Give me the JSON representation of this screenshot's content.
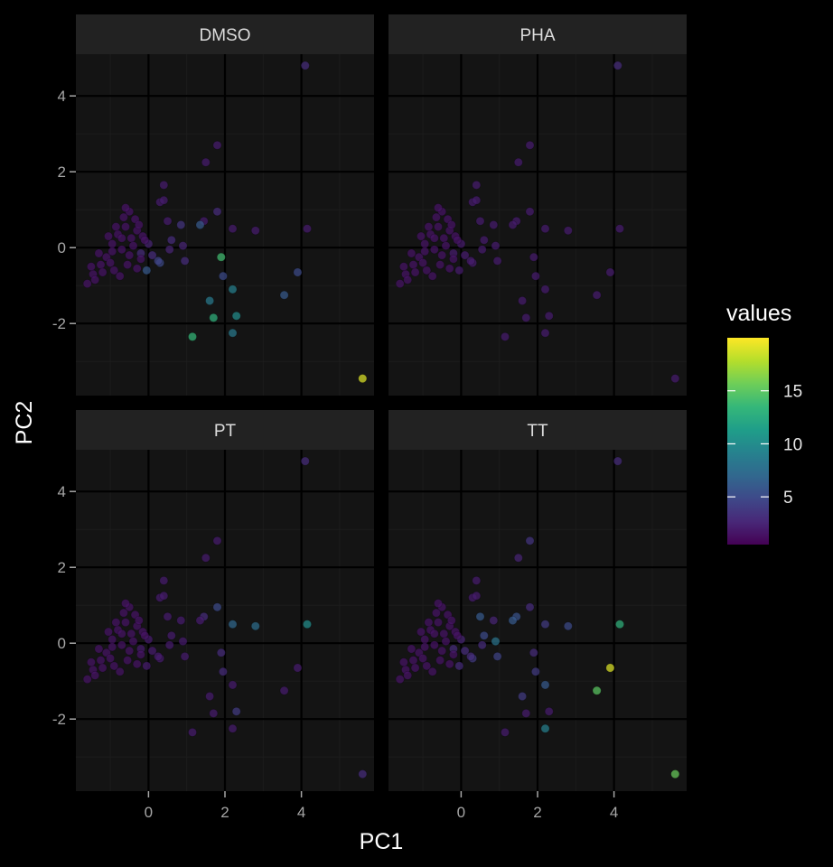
{
  "chart_data": {
    "type": "scatter",
    "facets": [
      "DMSO",
      "PHA",
      "PT",
      "TT"
    ],
    "xlabel": "PC1",
    "ylabel": "PC2",
    "xlim": [
      -1.9,
      5.9
    ],
    "ylim": [
      -3.9,
      5.1
    ],
    "x_ticks": [
      0,
      2,
      4
    ],
    "y_ticks": [
      -2,
      0,
      2,
      4
    ],
    "grid": true,
    "legend": {
      "title": "values",
      "placement": "right",
      "ticks": [
        5,
        10,
        15
      ],
      "range": [
        0.5,
        20
      ]
    },
    "colors": {
      "background": "#000000",
      "panel": "#141414",
      "strip": "#222222",
      "grid_major": "#000000",
      "grid_minor": "#1c1c1c",
      "viridis": [
        "#440154",
        "#482878",
        "#3e4989",
        "#31688e",
        "#26828e",
        "#1f9e89",
        "#35b779",
        "#6ece58",
        "#b5de2b",
        "#fde725"
      ]
    },
    "points": [
      {
        "x": 4.1,
        "y": 4.8,
        "v": [
          3.0,
          3.0,
          3.0,
          3.0
        ]
      },
      {
        "x": 1.8,
        "y": 2.7,
        "v": [
          2.0,
          2.0,
          2.0,
          3.5
        ]
      },
      {
        "x": 1.5,
        "y": 2.25,
        "v": [
          2.0,
          2.0,
          2.0,
          2.5
        ]
      },
      {
        "x": 0.4,
        "y": 1.65,
        "v": [
          2.0,
          2.0,
          2.0,
          2.0
        ]
      },
      {
        "x": 0.3,
        "y": 1.2,
        "v": [
          2.0,
          2.0,
          2.0,
          2.0
        ]
      },
      {
        "x": 0.4,
        "y": 1.25,
        "v": [
          2.0,
          2.0,
          2.0,
          2.0
        ]
      },
      {
        "x": 1.8,
        "y": 0.95,
        "v": [
          3.0,
          2.0,
          5.0,
          3.0
        ]
      },
      {
        "x": 1.9,
        "y": -0.25,
        "v": [
          14.0,
          2.0,
          3.0,
          3.0
        ]
      },
      {
        "x": 1.95,
        "y": -0.75,
        "v": [
          5.0,
          2.0,
          3.0,
          4.0
        ]
      },
      {
        "x": 2.2,
        "y": -1.1,
        "v": [
          9.0,
          2.0,
          2.0,
          6.0
        ]
      },
      {
        "x": 1.6,
        "y": -1.4,
        "v": [
          8.5,
          2.0,
          2.0,
          4.0
        ]
      },
      {
        "x": 1.7,
        "y": -1.85,
        "v": [
          13.0,
          2.0,
          2.0,
          2.0
        ]
      },
      {
        "x": 2.3,
        "y": -1.8,
        "v": [
          10.0,
          2.0,
          4.0,
          2.0
        ]
      },
      {
        "x": 2.2,
        "y": -2.25,
        "v": [
          8.5,
          2.0,
          2.0,
          9.0
        ]
      },
      {
        "x": 1.15,
        "y": -2.35,
        "v": [
          13.5,
          2.0,
          2.0,
          2.0
        ]
      },
      {
        "x": 3.55,
        "y": -1.25,
        "v": [
          6.0,
          2.0,
          2.0,
          15.0
        ]
      },
      {
        "x": 3.9,
        "y": -0.65,
        "v": [
          5.0,
          2.0,
          2.0,
          19.0
        ]
      },
      {
        "x": 5.6,
        "y": -3.45,
        "v": [
          19.0,
          2.0,
          3.0,
          15.5
        ]
      },
      {
        "x": 4.15,
        "y": 0.5,
        "v": [
          2.0,
          2.0,
          10.0,
          13.0
        ]
      },
      {
        "x": 2.8,
        "y": 0.45,
        "v": [
          2.0,
          2.0,
          7.5,
          5.0
        ]
      },
      {
        "x": 2.2,
        "y": 0.5,
        "v": [
          2.0,
          2.0,
          7.0,
          4.0
        ]
      },
      {
        "x": 1.45,
        "y": 0.7,
        "v": [
          2.0,
          2.0,
          3.0,
          5.5
        ]
      },
      {
        "x": 1.35,
        "y": 0.6,
        "v": [
          6.0,
          2.0,
          2.0,
          6.0
        ]
      },
      {
        "x": 0.85,
        "y": 0.6,
        "v": [
          3.5,
          2.0,
          2.0,
          2.5
        ]
      },
      {
        "x": 0.5,
        "y": 0.7,
        "v": [
          2.0,
          2.0,
          2.0,
          6.0
        ]
      },
      {
        "x": 0.9,
        "y": 0.05,
        "v": [
          2.5,
          2.0,
          2.0,
          8.0
        ]
      },
      {
        "x": 0.6,
        "y": 0.2,
        "v": [
          3.0,
          2.0,
          2.0,
          5.0
        ]
      },
      {
        "x": 0.95,
        "y": -0.35,
        "v": [
          3.0,
          2.0,
          2.0,
          4.5
        ]
      },
      {
        "x": 0.3,
        "y": -0.4,
        "v": [
          5.0,
          2.0,
          2.0,
          4.0
        ]
      },
      {
        "x": -0.05,
        "y": -0.6,
        "v": [
          6.0,
          2.0,
          2.0,
          3.0
        ]
      },
      {
        "x": 0.1,
        "y": -0.2,
        "v": [
          3.0,
          2.0,
          2.0,
          3.0
        ]
      },
      {
        "x": -0.2,
        "y": -0.15,
        "v": [
          3.0,
          2.0,
          2.0,
          3.0
        ]
      },
      {
        "x": 0.0,
        "y": 0.1,
        "v": [
          2.5,
          2.0,
          2.0,
          2.5
        ]
      },
      {
        "x": 0.25,
        "y": -0.35,
        "v": [
          4.5,
          2.0,
          2.0,
          3.0
        ]
      },
      {
        "x": 0.55,
        "y": -0.05,
        "v": [
          2.5,
          2.0,
          2.0,
          3.0
        ]
      },
      {
        "x": -0.35,
        "y": 0.75,
        "v": [
          1.5,
          1.5,
          1.5,
          1.5
        ]
      },
      {
        "x": -0.5,
        "y": 0.95,
        "v": [
          1.5,
          1.5,
          1.5,
          1.5
        ]
      },
      {
        "x": -0.6,
        "y": 0.55,
        "v": [
          1.5,
          1.5,
          1.5,
          1.5
        ]
      },
      {
        "x": -0.8,
        "y": 0.35,
        "v": [
          1.5,
          1.5,
          1.5,
          1.5
        ]
      },
      {
        "x": -0.45,
        "y": 0.25,
        "v": [
          1.5,
          1.5,
          1.5,
          1.5
        ]
      },
      {
        "x": -0.3,
        "y": 0.45,
        "v": [
          1.5,
          1.5,
          1.5,
          1.5
        ]
      },
      {
        "x": -0.7,
        "y": -0.05,
        "v": [
          1.5,
          1.5,
          1.5,
          1.5
        ]
      },
      {
        "x": -0.95,
        "y": 0.1,
        "v": [
          1.5,
          1.5,
          1.5,
          1.5
        ]
      },
      {
        "x": -1.1,
        "y": -0.25,
        "v": [
          1.5,
          1.5,
          1.5,
          1.5
        ]
      },
      {
        "x": -1.25,
        "y": -0.45,
        "v": [
          1.5,
          1.5,
          1.5,
          1.5
        ]
      },
      {
        "x": -1.45,
        "y": -0.7,
        "v": [
          1.5,
          1.5,
          1.5,
          1.5
        ]
      },
      {
        "x": -1.6,
        "y": -0.95,
        "v": [
          1.5,
          1.5,
          1.5,
          1.5
        ]
      },
      {
        "x": -0.9,
        "y": -0.6,
        "v": [
          1.5,
          1.5,
          1.5,
          1.5
        ]
      },
      {
        "x": -0.55,
        "y": -0.45,
        "v": [
          1.5,
          1.5,
          1.5,
          1.5
        ]
      },
      {
        "x": -0.2,
        "y": -0.3,
        "v": [
          1.5,
          1.5,
          1.5,
          1.5
        ]
      },
      {
        "x": -1.3,
        "y": -0.15,
        "v": [
          1.5,
          1.5,
          1.5,
          1.5
        ]
      },
      {
        "x": -0.65,
        "y": 0.8,
        "v": [
          1.5,
          1.5,
          1.5,
          1.5
        ]
      },
      {
        "x": -0.75,
        "y": -0.75,
        "v": [
          1.5,
          1.5,
          1.5,
          1.5
        ]
      },
      {
        "x": -1.0,
        "y": -0.4,
        "v": [
          1.5,
          1.5,
          1.5,
          1.5
        ]
      },
      {
        "x": -1.2,
        "y": -0.65,
        "v": [
          1.5,
          1.5,
          1.5,
          1.5
        ]
      },
      {
        "x": -0.15,
        "y": 0.3,
        "v": [
          1.5,
          1.5,
          1.5,
          1.5
        ]
      },
      {
        "x": -0.4,
        "y": 0.05,
        "v": [
          1.5,
          1.5,
          1.5,
          1.5
        ]
      },
      {
        "x": -0.85,
        "y": 0.55,
        "v": [
          1.5,
          1.5,
          1.5,
          1.5
        ]
      },
      {
        "x": -1.05,
        "y": 0.3,
        "v": [
          1.5,
          1.5,
          1.5,
          1.5
        ]
      },
      {
        "x": -0.25,
        "y": 0.6,
        "v": [
          1.5,
          1.5,
          1.5,
          1.5
        ]
      },
      {
        "x": -0.5,
        "y": -0.2,
        "v": [
          1.5,
          1.5,
          1.5,
          1.5
        ]
      },
      {
        "x": -1.5,
        "y": -0.5,
        "v": [
          1.5,
          1.5,
          1.5,
          1.5
        ]
      },
      {
        "x": -1.4,
        "y": -0.85,
        "v": [
          1.5,
          1.5,
          1.5,
          1.5
        ]
      },
      {
        "x": -0.6,
        "y": 1.05,
        "v": [
          1.5,
          1.5,
          1.5,
          1.5
        ]
      },
      {
        "x": -0.3,
        "y": -0.55,
        "v": [
          1.5,
          1.5,
          1.5,
          1.5
        ]
      },
      {
        "x": -0.95,
        "y": -0.1,
        "v": [
          1.5,
          1.5,
          1.5,
          1.5
        ]
      },
      {
        "x": -0.1,
        "y": 0.2,
        "v": [
          1.5,
          1.5,
          1.5,
          1.5
        ]
      },
      {
        "x": -0.7,
        "y": 0.25,
        "v": [
          1.5,
          1.5,
          1.5,
          1.5
        ]
      }
    ]
  }
}
